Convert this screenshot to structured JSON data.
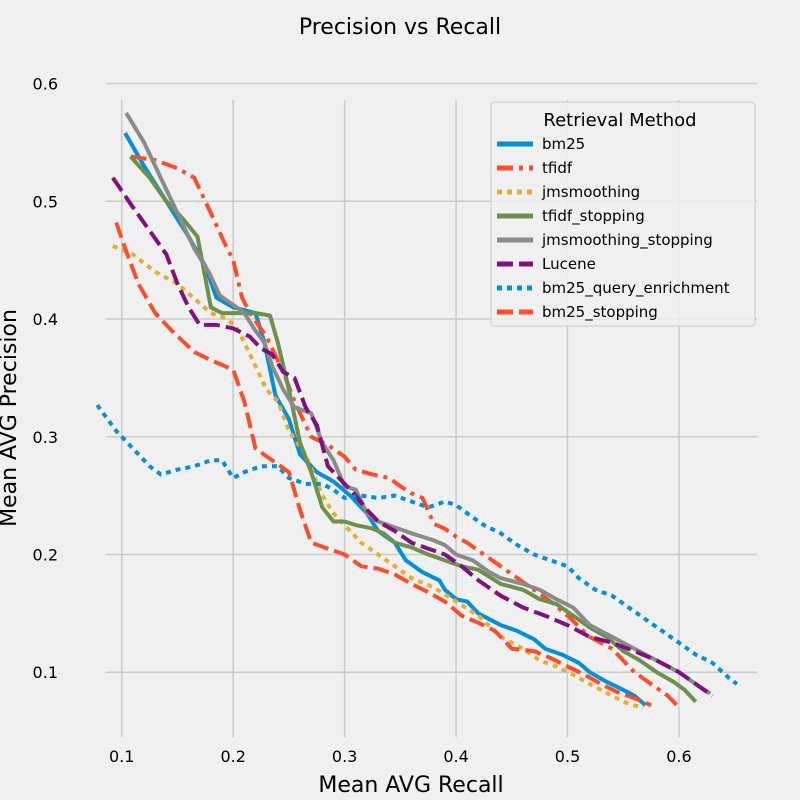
{
  "chart_data": {
    "type": "line",
    "title": "Precision vs Recall",
    "xlabel": "Mean AVG Recall",
    "ylabel": "Mean AVG Precision",
    "xlim": [
      0.05,
      0.67
    ],
    "ylim": [
      0.045,
      0.62
    ],
    "xticks": [
      0.1,
      0.2,
      0.3,
      0.4,
      0.5,
      0.6
    ],
    "yticks": [
      0.1,
      0.2,
      0.3,
      0.4,
      0.5,
      0.6
    ],
    "xtick_labels": [
      "0.1",
      "0.2",
      "0.3",
      "0.4",
      "0.5",
      "0.6"
    ],
    "ytick_labels": [
      "0.1",
      "0.2",
      "0.3",
      "0.4",
      "0.5",
      "0.6"
    ],
    "grid": true,
    "legend": {
      "title": "Retrieval Method",
      "placement": "top-right"
    },
    "series": [
      {
        "name": "bm25",
        "color": "#008fd5",
        "dash": "solid",
        "points": [
          [
            0.103,
            0.558
          ],
          [
            0.12,
            0.53
          ],
          [
            0.14,
            0.5
          ],
          [
            0.16,
            0.47
          ],
          [
            0.175,
            0.445
          ],
          [
            0.185,
            0.418
          ],
          [
            0.2,
            0.41
          ],
          [
            0.22,
            0.405
          ],
          [
            0.228,
            0.38
          ],
          [
            0.238,
            0.335
          ],
          [
            0.25,
            0.315
          ],
          [
            0.26,
            0.285
          ],
          [
            0.275,
            0.27
          ],
          [
            0.29,
            0.262
          ],
          [
            0.305,
            0.25
          ],
          [
            0.32,
            0.235
          ],
          [
            0.33,
            0.22
          ],
          [
            0.345,
            0.21
          ],
          [
            0.355,
            0.195
          ],
          [
            0.37,
            0.185
          ],
          [
            0.385,
            0.178
          ],
          [
            0.39,
            0.17
          ],
          [
            0.4,
            0.162
          ],
          [
            0.41,
            0.16
          ],
          [
            0.42,
            0.15
          ],
          [
            0.43,
            0.145
          ],
          [
            0.44,
            0.14
          ],
          [
            0.455,
            0.135
          ],
          [
            0.47,
            0.128
          ],
          [
            0.48,
            0.12
          ],
          [
            0.495,
            0.115
          ],
          [
            0.51,
            0.108
          ],
          [
            0.52,
            0.1
          ],
          [
            0.535,
            0.092
          ],
          [
            0.55,
            0.085
          ],
          [
            0.56,
            0.08
          ],
          [
            0.57,
            0.072
          ]
        ]
      },
      {
        "name": "tfidf",
        "color": "#fc4f30",
        "dash": "dashdot",
        "points": [
          [
            0.108,
            0.538
          ],
          [
            0.13,
            0.535
          ],
          [
            0.15,
            0.528
          ],
          [
            0.165,
            0.52
          ],
          [
            0.18,
            0.49
          ],
          [
            0.192,
            0.465
          ],
          [
            0.2,
            0.45
          ],
          [
            0.208,
            0.418
          ],
          [
            0.215,
            0.405
          ],
          [
            0.23,
            0.385
          ],
          [
            0.245,
            0.355
          ],
          [
            0.255,
            0.33
          ],
          [
            0.27,
            0.3
          ],
          [
            0.285,
            0.293
          ],
          [
            0.3,
            0.283
          ],
          [
            0.31,
            0.272
          ],
          [
            0.325,
            0.268
          ],
          [
            0.34,
            0.265
          ],
          [
            0.35,
            0.258
          ],
          [
            0.36,
            0.252
          ],
          [
            0.37,
            0.248
          ],
          [
            0.38,
            0.226
          ],
          [
            0.39,
            0.222
          ],
          [
            0.4,
            0.215
          ],
          [
            0.41,
            0.21
          ],
          [
            0.425,
            0.2
          ],
          [
            0.44,
            0.19
          ],
          [
            0.455,
            0.18
          ],
          [
            0.47,
            0.17
          ],
          [
            0.485,
            0.16
          ],
          [
            0.5,
            0.148
          ],
          [
            0.52,
            0.13
          ],
          [
            0.54,
            0.12
          ],
          [
            0.56,
            0.1
          ],
          [
            0.575,
            0.09
          ],
          [
            0.59,
            0.08
          ],
          [
            0.598,
            0.072
          ]
        ]
      },
      {
        "name": "jmsmoothing",
        "color": "#e5ae38",
        "dash": "dotted",
        "points": [
          [
            0.092,
            0.462
          ],
          [
            0.11,
            0.455
          ],
          [
            0.13,
            0.44
          ],
          [
            0.15,
            0.43
          ],
          [
            0.168,
            0.415
          ],
          [
            0.18,
            0.405
          ],
          [
            0.195,
            0.4
          ],
          [
            0.205,
            0.39
          ],
          [
            0.215,
            0.37
          ],
          [
            0.23,
            0.34
          ],
          [
            0.24,
            0.33
          ],
          [
            0.25,
            0.305
          ],
          [
            0.265,
            0.285
          ],
          [
            0.28,
            0.25
          ],
          [
            0.29,
            0.235
          ],
          [
            0.3,
            0.225
          ],
          [
            0.315,
            0.21
          ],
          [
            0.33,
            0.2
          ],
          [
            0.345,
            0.19
          ],
          [
            0.36,
            0.18
          ],
          [
            0.38,
            0.172
          ],
          [
            0.4,
            0.16
          ],
          [
            0.42,
            0.148
          ],
          [
            0.44,
            0.13
          ],
          [
            0.46,
            0.12
          ],
          [
            0.475,
            0.11
          ],
          [
            0.49,
            0.105
          ],
          [
            0.505,
            0.098
          ],
          [
            0.52,
            0.09
          ],
          [
            0.54,
            0.08
          ],
          [
            0.555,
            0.073
          ],
          [
            0.568,
            0.07
          ]
        ]
      },
      {
        "name": "tfidf_stopping",
        "color": "#6d904f",
        "dash": "solid",
        "points": [
          [
            0.108,
            0.538
          ],
          [
            0.125,
            0.52
          ],
          [
            0.14,
            0.5
          ],
          [
            0.155,
            0.485
          ],
          [
            0.168,
            0.47
          ],
          [
            0.18,
            0.41
          ],
          [
            0.19,
            0.405
          ],
          [
            0.22,
            0.405
          ],
          [
            0.233,
            0.403
          ],
          [
            0.24,
            0.38
          ],
          [
            0.25,
            0.34
          ],
          [
            0.26,
            0.295
          ],
          [
            0.27,
            0.27
          ],
          [
            0.28,
            0.24
          ],
          [
            0.29,
            0.228
          ],
          [
            0.3,
            0.228
          ],
          [
            0.31,
            0.225
          ],
          [
            0.325,
            0.222
          ],
          [
            0.335,
            0.218
          ],
          [
            0.345,
            0.21
          ],
          [
            0.36,
            0.206
          ],
          [
            0.375,
            0.2
          ],
          [
            0.39,
            0.195
          ],
          [
            0.405,
            0.19
          ],
          [
            0.42,
            0.187
          ],
          [
            0.44,
            0.175
          ],
          [
            0.46,
            0.17
          ],
          [
            0.475,
            0.162
          ],
          [
            0.49,
            0.158
          ],
          [
            0.505,
            0.148
          ],
          [
            0.52,
            0.138
          ],
          [
            0.535,
            0.13
          ],
          [
            0.55,
            0.118
          ],
          [
            0.565,
            0.11
          ],
          [
            0.58,
            0.1
          ],
          [
            0.595,
            0.092
          ],
          [
            0.605,
            0.085
          ],
          [
            0.615,
            0.075
          ]
        ]
      },
      {
        "name": "jmsmoothing_stopping",
        "color": "#8b8b8b",
        "dash": "solid",
        "points": [
          [
            0.104,
            0.575
          ],
          [
            0.12,
            0.55
          ],
          [
            0.135,
            0.52
          ],
          [
            0.15,
            0.49
          ],
          [
            0.165,
            0.46
          ],
          [
            0.178,
            0.44
          ],
          [
            0.188,
            0.42
          ],
          [
            0.2,
            0.412
          ],
          [
            0.21,
            0.405
          ],
          [
            0.22,
            0.39
          ],
          [
            0.228,
            0.38
          ],
          [
            0.235,
            0.36
          ],
          [
            0.245,
            0.34
          ],
          [
            0.255,
            0.325
          ],
          [
            0.27,
            0.32
          ],
          [
            0.28,
            0.295
          ],
          [
            0.29,
            0.28
          ],
          [
            0.3,
            0.258
          ],
          [
            0.31,
            0.255
          ],
          [
            0.32,
            0.235
          ],
          [
            0.33,
            0.228
          ],
          [
            0.345,
            0.223
          ],
          [
            0.36,
            0.218
          ],
          [
            0.38,
            0.212
          ],
          [
            0.39,
            0.208
          ],
          [
            0.4,
            0.2
          ],
          [
            0.415,
            0.195
          ],
          [
            0.43,
            0.185
          ],
          [
            0.44,
            0.18
          ],
          [
            0.46,
            0.175
          ],
          [
            0.475,
            0.17
          ],
          [
            0.49,
            0.162
          ],
          [
            0.505,
            0.155
          ],
          [
            0.52,
            0.14
          ],
          [
            0.54,
            0.13
          ],
          [
            0.56,
            0.12
          ],
          [
            0.58,
            0.11
          ],
          [
            0.6,
            0.1
          ],
          [
            0.615,
            0.09
          ],
          [
            0.628,
            0.082
          ]
        ]
      },
      {
        "name": "Lucene",
        "color": "#810f7c",
        "dash": "dashed",
        "points": [
          [
            0.092,
            0.52
          ],
          [
            0.11,
            0.495
          ],
          [
            0.125,
            0.475
          ],
          [
            0.14,
            0.455
          ],
          [
            0.15,
            0.43
          ],
          [
            0.16,
            0.41
          ],
          [
            0.17,
            0.395
          ],
          [
            0.185,
            0.395
          ],
          [
            0.2,
            0.392
          ],
          [
            0.215,
            0.385
          ],
          [
            0.225,
            0.375
          ],
          [
            0.235,
            0.37
          ],
          [
            0.245,
            0.355
          ],
          [
            0.255,
            0.35
          ],
          [
            0.265,
            0.325
          ],
          [
            0.275,
            0.31
          ],
          [
            0.285,
            0.275
          ],
          [
            0.3,
            0.26
          ],
          [
            0.31,
            0.25
          ],
          [
            0.32,
            0.238
          ],
          [
            0.33,
            0.228
          ],
          [
            0.345,
            0.22
          ],
          [
            0.36,
            0.21
          ],
          [
            0.375,
            0.205
          ],
          [
            0.39,
            0.2
          ],
          [
            0.405,
            0.19
          ],
          [
            0.42,
            0.178
          ],
          [
            0.44,
            0.165
          ],
          [
            0.46,
            0.155
          ],
          [
            0.48,
            0.148
          ],
          [
            0.5,
            0.14
          ],
          [
            0.52,
            0.13
          ],
          [
            0.54,
            0.125
          ],
          [
            0.56,
            0.118
          ],
          [
            0.58,
            0.11
          ],
          [
            0.6,
            0.1
          ],
          [
            0.615,
            0.09
          ],
          [
            0.63,
            0.08
          ]
        ]
      },
      {
        "name": "bm25_query_enrichment",
        "color": "#008fd5",
        "dash": "dotted",
        "points": [
          [
            0.078,
            0.327
          ],
          [
            0.095,
            0.305
          ],
          [
            0.11,
            0.29
          ],
          [
            0.125,
            0.275
          ],
          [
            0.135,
            0.268
          ],
          [
            0.15,
            0.272
          ],
          [
            0.165,
            0.275
          ],
          [
            0.18,
            0.28
          ],
          [
            0.19,
            0.28
          ],
          [
            0.2,
            0.265
          ],
          [
            0.21,
            0.27
          ],
          [
            0.225,
            0.275
          ],
          [
            0.24,
            0.275
          ],
          [
            0.25,
            0.265
          ],
          [
            0.265,
            0.26
          ],
          [
            0.28,
            0.26
          ],
          [
            0.29,
            0.255
          ],
          [
            0.3,
            0.248
          ],
          [
            0.315,
            0.25
          ],
          [
            0.33,
            0.248
          ],
          [
            0.345,
            0.25
          ],
          [
            0.36,
            0.245
          ],
          [
            0.375,
            0.24
          ],
          [
            0.39,
            0.245
          ],
          [
            0.4,
            0.242
          ],
          [
            0.41,
            0.235
          ],
          [
            0.425,
            0.225
          ],
          [
            0.44,
            0.218
          ],
          [
            0.455,
            0.208
          ],
          [
            0.47,
            0.2
          ],
          [
            0.485,
            0.195
          ],
          [
            0.5,
            0.19
          ],
          [
            0.51,
            0.18
          ],
          [
            0.525,
            0.17
          ],
          [
            0.54,
            0.165
          ],
          [
            0.555,
            0.155
          ],
          [
            0.57,
            0.145
          ],
          [
            0.585,
            0.135
          ],
          [
            0.6,
            0.125
          ],
          [
            0.615,
            0.115
          ],
          [
            0.63,
            0.108
          ],
          [
            0.645,
            0.095
          ],
          [
            0.652,
            0.09
          ]
        ]
      },
      {
        "name": "bm25_stopping",
        "color": "#fc4f30",
        "dash": "dashed",
        "points": [
          [
            0.095,
            0.482
          ],
          [
            0.105,
            0.455
          ],
          [
            0.115,
            0.43
          ],
          [
            0.13,
            0.405
          ],
          [
            0.145,
            0.39
          ],
          [
            0.165,
            0.372
          ],
          [
            0.18,
            0.365
          ],
          [
            0.2,
            0.357
          ],
          [
            0.21,
            0.33
          ],
          [
            0.22,
            0.29
          ],
          [
            0.235,
            0.28
          ],
          [
            0.25,
            0.27
          ],
          [
            0.26,
            0.238
          ],
          [
            0.27,
            0.21
          ],
          [
            0.285,
            0.205
          ],
          [
            0.3,
            0.2
          ],
          [
            0.315,
            0.19
          ],
          [
            0.33,
            0.188
          ],
          [
            0.345,
            0.183
          ],
          [
            0.36,
            0.175
          ],
          [
            0.375,
            0.168
          ],
          [
            0.39,
            0.16
          ],
          [
            0.405,
            0.148
          ],
          [
            0.42,
            0.142
          ],
          [
            0.435,
            0.135
          ],
          [
            0.45,
            0.12
          ],
          [
            0.47,
            0.118
          ],
          [
            0.485,
            0.112
          ],
          [
            0.5,
            0.105
          ],
          [
            0.515,
            0.098
          ],
          [
            0.53,
            0.09
          ],
          [
            0.545,
            0.083
          ],
          [
            0.56,
            0.078
          ],
          [
            0.575,
            0.072
          ]
        ]
      }
    ]
  }
}
